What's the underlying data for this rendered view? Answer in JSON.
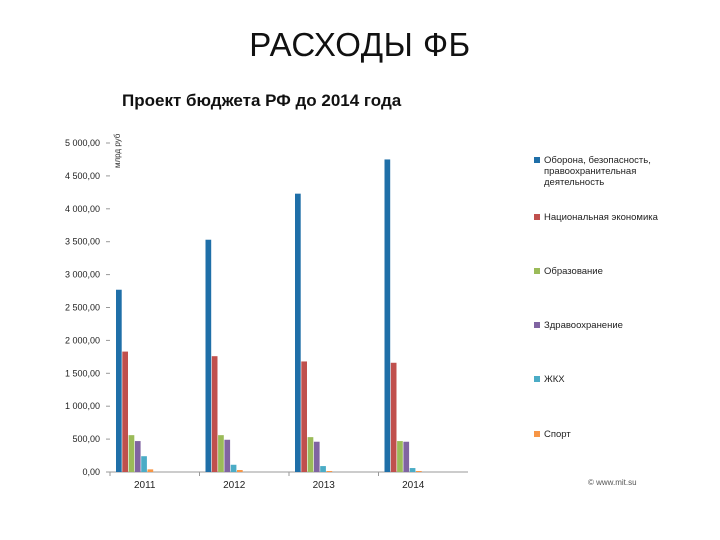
{
  "slide": {
    "title": "РАСХОДЫ ФБ"
  },
  "chart_data": {
    "type": "bar",
    "title": "Проект бюджета РФ до 2014 года",
    "ylabel": "млрд руб",
    "categories": [
      "2011",
      "2012",
      "2013",
      "2014"
    ],
    "ylim": [
      0,
      5000
    ],
    "yticks": [
      0,
      500,
      1000,
      1500,
      2000,
      2500,
      3000,
      3500,
      4000,
      4500,
      5000
    ],
    "ytick_labels": [
      "0,00",
      "500,00",
      "1 000,00",
      "1 500,00",
      "2 000,00",
      "2 500,00",
      "3 000,00",
      "3 500,00",
      "4 000,00",
      "4 500,00",
      "5 000,00"
    ],
    "grid": false,
    "legend_position": "right",
    "series": [
      {
        "name": "Оборона, безопасность, правоохранительная деятельность",
        "color": "#1f6fa8",
        "values": [
          2770,
          3530,
          4230,
          4750
        ]
      },
      {
        "name": "Национальная экономика",
        "color": "#c0504d",
        "values": [
          1830,
          1760,
          1680,
          1660
        ]
      },
      {
        "name": "Образование",
        "color": "#9bbb59",
        "values": [
          560,
          560,
          530,
          470
        ]
      },
      {
        "name": "Здравоохранение",
        "color": "#8064a2",
        "values": [
          470,
          490,
          460,
          460
        ]
      },
      {
        "name": "ЖКХ",
        "color": "#4bacc6",
        "values": [
          240,
          110,
          90,
          60
        ]
      },
      {
        "name": "Спорт",
        "color": "#f79646",
        "values": [
          40,
          30,
          15,
          15
        ]
      }
    ],
    "source_note": "© www.mit.su"
  }
}
